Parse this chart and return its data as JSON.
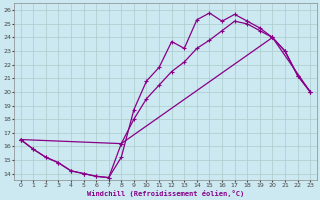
{
  "xlabel": "Windchill (Refroidissement éolien,°C)",
  "xlim": [
    -0.5,
    23.5
  ],
  "ylim": [
    13.5,
    26.5
  ],
  "yticks": [
    14,
    15,
    16,
    17,
    18,
    19,
    20,
    21,
    22,
    23,
    24,
    25,
    26
  ],
  "xticks": [
    0,
    1,
    2,
    3,
    4,
    5,
    6,
    7,
    8,
    9,
    10,
    11,
    12,
    13,
    14,
    15,
    16,
    17,
    18,
    19,
    20,
    21,
    22,
    23
  ],
  "bg_color": "#cce8f0",
  "line_color": "#880088",
  "grid_color": "#aacccc",
  "line1_x": [
    0,
    1,
    2,
    3,
    4,
    5,
    6,
    7,
    8,
    9,
    10,
    11,
    12,
    13,
    14,
    15,
    16,
    17,
    18,
    19,
    20,
    21,
    22,
    23
  ],
  "line1_y": [
    16.5,
    15.8,
    15.2,
    14.8,
    14.2,
    14.0,
    13.8,
    13.7,
    15.2,
    18.7,
    20.8,
    21.8,
    23.7,
    23.2,
    25.3,
    25.8,
    25.2,
    25.7,
    25.2,
    24.7,
    24.0,
    23.0,
    21.2,
    20.0
  ],
  "line2_x": [
    0,
    1,
    2,
    3,
    4,
    5,
    6,
    7,
    8,
    9,
    10,
    11,
    12,
    13,
    14,
    15,
    16,
    17,
    18,
    19,
    20,
    21,
    22,
    23
  ],
  "line2_y": [
    16.5,
    15.8,
    15.2,
    14.8,
    14.2,
    14.0,
    13.8,
    13.7,
    16.2,
    18.0,
    19.5,
    20.5,
    21.5,
    22.2,
    23.2,
    23.8,
    24.5,
    25.2,
    25.0,
    24.5,
    24.0,
    23.0,
    21.2,
    20.0
  ],
  "line3_x": [
    0,
    8,
    20,
    23
  ],
  "line3_y": [
    16.5,
    16.2,
    24.0,
    20.0
  ],
  "marker": "+"
}
